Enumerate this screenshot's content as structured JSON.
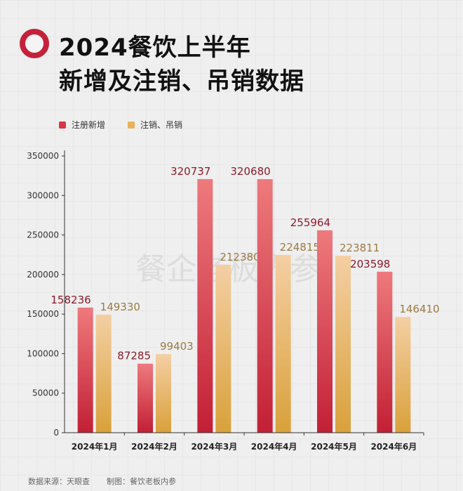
{
  "title": {
    "line1": "2024餐饮上半年",
    "line2": "新增及注销、吊销数据"
  },
  "footer": {
    "source": "数据来源：天眼查",
    "maker": "制图：餐饮老板内参"
  },
  "watermark": "餐企老板内参",
  "colors": {
    "accent": "#c4223a",
    "new_reg": "#d93545",
    "cancel": "#e8b15a"
  },
  "chart_data": {
    "type": "bar",
    "categories": [
      "2024年1月",
      "2024年2月",
      "2024年3月",
      "2024年4月",
      "2024年5月",
      "2024年6月"
    ],
    "series": [
      {
        "name": "注册新增",
        "values": [
          158236,
          87285,
          320737,
          320680,
          255964,
          203598
        ]
      },
      {
        "name": "注销、吊销",
        "values": [
          149330,
          99403,
          212380,
          224815,
          223811,
          146410
        ]
      }
    ],
    "ylim": [
      0,
      350000
    ],
    "yticks": [
      0,
      50000,
      100000,
      150000,
      200000,
      250000,
      300000,
      350000
    ],
    "legend_position": "top-left",
    "grid": false
  }
}
